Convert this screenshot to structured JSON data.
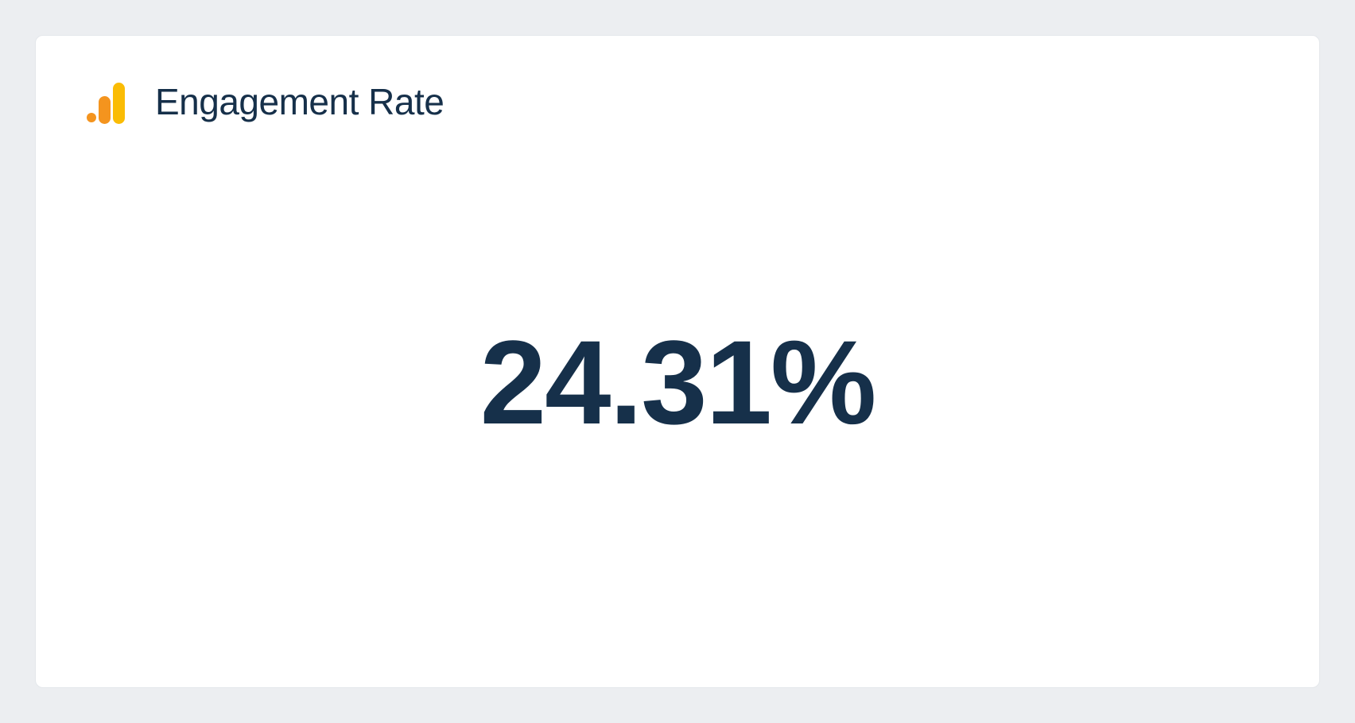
{
  "card": {
    "title": "Engagement Rate",
    "metric_value": "24.31%",
    "icon_name": "google-analytics",
    "icon_colors": {
      "dot": "#f4941e",
      "bar_medium": "#f4941e",
      "bar_tall": "#fabc05"
    },
    "styling": {
      "page_background": "#eceef1",
      "card_background": "#ffffff",
      "card_border": "#e4e7eb",
      "card_border_radius": 10,
      "text_color": "#16304a",
      "title_font_size": 46,
      "title_font_weight": 500,
      "metric_font_size": 150,
      "metric_font_weight": 700
    }
  }
}
